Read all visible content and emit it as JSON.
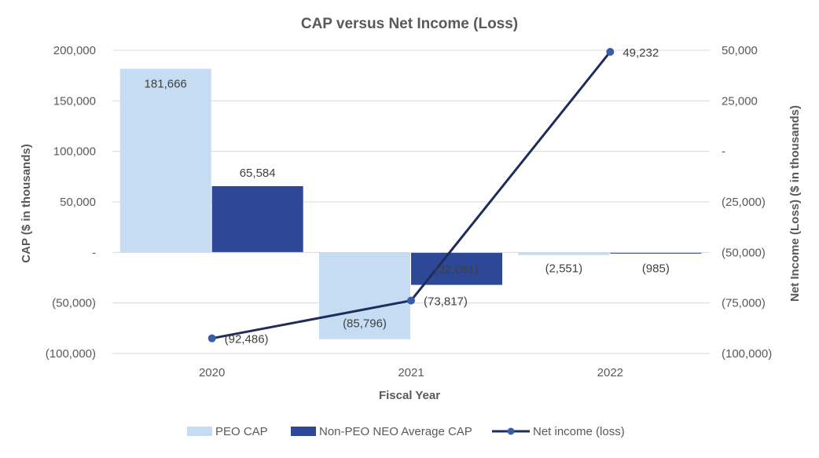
{
  "chart_data": {
    "type": "bar",
    "title": "CAP versus Net Income (Loss)",
    "xlabel": "Fiscal Year",
    "ylabel": "CAP ($ in thousands)",
    "y2label": "Net Income (Loss) ($ in thousands)",
    "categories": [
      "2020",
      "2021",
      "2022"
    ],
    "ylim": [
      -100000,
      200000
    ],
    "y2lim": [
      -100000,
      50000
    ],
    "y_ticks": [
      {
        "value": 200000,
        "label": "200,000"
      },
      {
        "value": 150000,
        "label": "150,000"
      },
      {
        "value": 100000,
        "label": "100,000"
      },
      {
        "value": 50000,
        "label": "50,000"
      },
      {
        "value": 0,
        "label": "-"
      },
      {
        "value": -50000,
        "label": "(50,000)"
      },
      {
        "value": -100000,
        "label": "(100,000)"
      }
    ],
    "y2_ticks": [
      {
        "value": 50000,
        "label": "50,000"
      },
      {
        "value": 25000,
        "label": "25,000"
      },
      {
        "value": 0,
        "label": "-"
      },
      {
        "value": -25000,
        "label": "(25,000)"
      },
      {
        "value": -50000,
        "label": "(50,000)"
      },
      {
        "value": -75000,
        "label": "(75,000)"
      },
      {
        "value": -100000,
        "label": "(100,000)"
      }
    ],
    "grid": true,
    "legend_position": "bottom",
    "series": [
      {
        "name": "PEO CAP",
        "type": "bar",
        "axis": "left",
        "color": "#c5dcf2",
        "values": [
          181666,
          -85796,
          -2551
        ],
        "labels": [
          "181,666",
          "(85,796)",
          "(2,551)"
        ]
      },
      {
        "name": "Non-PEO NEO Average CAP",
        "type": "bar",
        "axis": "left",
        "color": "#2e4898",
        "values": [
          65584,
          -32081,
          -985
        ],
        "labels": [
          "65,584",
          "(32,081)",
          "(985)"
        ]
      },
      {
        "name": "Net income (loss)",
        "type": "line",
        "axis": "right",
        "color": "#1f2d5c",
        "marker_color": "#3a5da8",
        "values": [
          -92486,
          -73817,
          49232
        ],
        "labels": [
          "(92,486)",
          "(73,817)",
          "49,232"
        ]
      }
    ]
  }
}
